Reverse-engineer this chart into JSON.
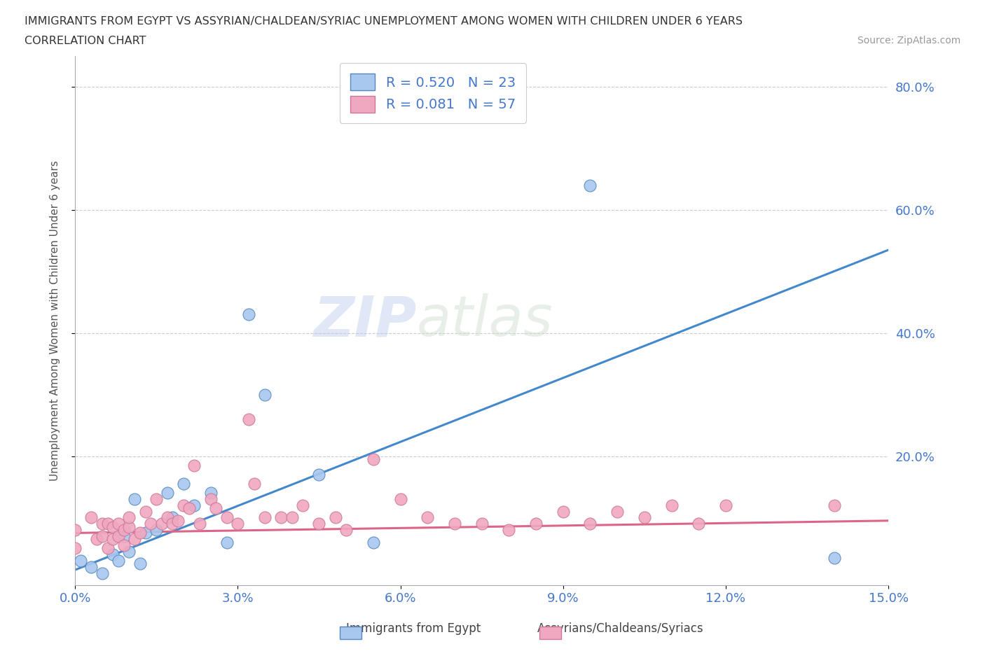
{
  "title_line1": "IMMIGRANTS FROM EGYPT VS ASSYRIAN/CHALDEAN/SYRIAC UNEMPLOYMENT AMONG WOMEN WITH CHILDREN UNDER 6 YEARS",
  "title_line2": "CORRELATION CHART",
  "source_text": "Source: ZipAtlas.com",
  "watermark_part1": "ZIP",
  "watermark_part2": "atlas",
  "xlim": [
    0.0,
    0.15
  ],
  "ylim": [
    -0.01,
    0.85
  ],
  "xticks": [
    0.0,
    0.03,
    0.06,
    0.09,
    0.12,
    0.15
  ],
  "yticks": [
    0.2,
    0.4,
    0.6,
    0.8
  ],
  "ylabel": "Unemployment Among Women with Children Under 6 years",
  "legend_label1": "R = 0.520   N = 23",
  "legend_label2": "R = 0.081   N = 57",
  "color_egypt": "#a8c8f0",
  "color_egypt_edge": "#5588bb",
  "color_egypt_line": "#4488cc",
  "color_assyrian": "#f0a8c0",
  "color_assyrian_edge": "#cc7799",
  "color_assyrian_line": "#dd6688",
  "color_blue_text": "#4477cc",
  "color_title": "#333333",
  "color_source": "#999999",
  "color_grid": "#cccccc",
  "egypt_x": [
    0.001,
    0.003,
    0.005,
    0.007,
    0.008,
    0.009,
    0.01,
    0.011,
    0.012,
    0.013,
    0.015,
    0.017,
    0.018,
    0.02,
    0.022,
    0.025,
    0.028,
    0.032,
    0.035,
    0.045,
    0.055,
    0.095,
    0.14
  ],
  "egypt_y": [
    0.03,
    0.02,
    0.01,
    0.04,
    0.03,
    0.07,
    0.045,
    0.13,
    0.025,
    0.075,
    0.08,
    0.14,
    0.1,
    0.155,
    0.12,
    0.14,
    0.06,
    0.43,
    0.3,
    0.17,
    0.06,
    0.64,
    0.035
  ],
  "assyrian_x": [
    0.0,
    0.0,
    0.003,
    0.004,
    0.005,
    0.005,
    0.006,
    0.006,
    0.007,
    0.007,
    0.008,
    0.008,
    0.009,
    0.009,
    0.01,
    0.01,
    0.011,
    0.012,
    0.013,
    0.014,
    0.015,
    0.016,
    0.017,
    0.018,
    0.019,
    0.02,
    0.021,
    0.022,
    0.023,
    0.025,
    0.026,
    0.028,
    0.03,
    0.032,
    0.033,
    0.035,
    0.038,
    0.04,
    0.042,
    0.045,
    0.048,
    0.05,
    0.055,
    0.06,
    0.065,
    0.07,
    0.075,
    0.08,
    0.085,
    0.09,
    0.095,
    0.1,
    0.105,
    0.11,
    0.115,
    0.12,
    0.14
  ],
  "assyrian_y": [
    0.05,
    0.08,
    0.1,
    0.065,
    0.09,
    0.07,
    0.05,
    0.09,
    0.085,
    0.065,
    0.09,
    0.07,
    0.055,
    0.08,
    0.085,
    0.1,
    0.065,
    0.075,
    0.11,
    0.09,
    0.13,
    0.09,
    0.1,
    0.09,
    0.095,
    0.12,
    0.115,
    0.185,
    0.09,
    0.13,
    0.115,
    0.1,
    0.09,
    0.26,
    0.155,
    0.1,
    0.1,
    0.1,
    0.12,
    0.09,
    0.1,
    0.08,
    0.195,
    0.13,
    0.1,
    0.09,
    0.09,
    0.08,
    0.09,
    0.11,
    0.09,
    0.11,
    0.1,
    0.12,
    0.09,
    0.12,
    0.12
  ],
  "egypt_trend_x": [
    0.0,
    0.15
  ],
  "egypt_trend_y": [
    0.015,
    0.535
  ],
  "assyrian_trend_x": [
    0.0,
    0.15
  ],
  "assyrian_trend_y": [
    0.075,
    0.095
  ],
  "background_color": "#ffffff",
  "scatter_size": 150
}
